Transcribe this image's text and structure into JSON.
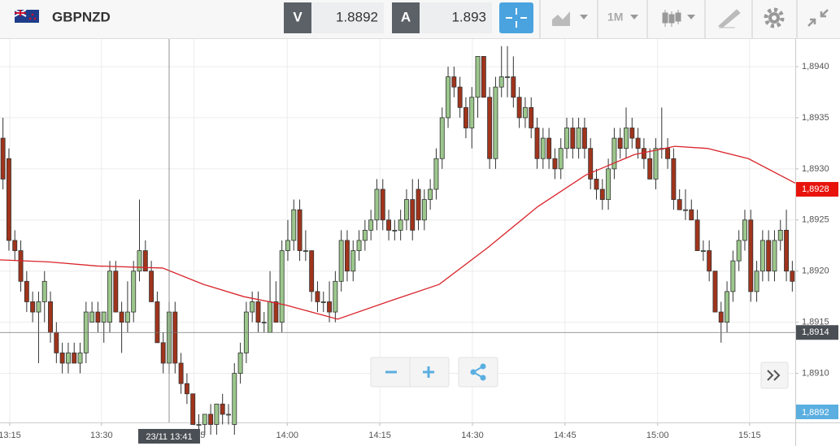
{
  "toolbar": {
    "symbol": "GBPNZD",
    "bid_label": "V",
    "bid": 1.8892,
    "ask_label": "A",
    "ask": 1.893,
    "timeframe": "1M"
  },
  "chart_data": {
    "type": "candlestick",
    "up_color": "#9cc78c",
    "down_color": "#a0341c",
    "grid": true,
    "xlim": [
      -0.5,
      133.5
    ],
    "ylim": [
      1.89052,
      1.89427
    ],
    "xticks": [
      {
        "value": 1.14,
        "label": "13:15"
      },
      {
        "value": 16.6,
        "label": "13:30"
      },
      {
        "value": 32.2,
        "label": "13:45"
      },
      {
        "value": 47.9,
        "label": "14:00"
      },
      {
        "value": 63.5,
        "label": "14:15"
      },
      {
        "value": 79.1,
        "label": "14:30"
      },
      {
        "value": 94.7,
        "label": "14:45"
      },
      {
        "value": 110.3,
        "label": "15:00"
      },
      {
        "value": 125.8,
        "label": "15:15"
      }
    ],
    "yticks": [
      {
        "value": 1.891,
        "label": "1,8910"
      },
      {
        "value": 1.8915,
        "label": "1,8915"
      },
      {
        "value": 1.892,
        "label": "1,8920"
      },
      {
        "value": 1.8925,
        "label": "1,8925"
      },
      {
        "value": 1.893,
        "label": "1,8930"
      },
      {
        "value": 1.8935,
        "label": "1,8935"
      },
      {
        "value": 1.894,
        "label": "1,8940"
      }
    ],
    "candles": [
      [
        1.8933,
        1.8935,
        1.8928,
        1.8929
      ],
      [
        1.8931,
        1.8932,
        1.8922,
        1.8923
      ],
      [
        1.8923,
        1.8924,
        1.8921,
        1.8922
      ],
      [
        1.8922,
        1.8923,
        1.8918,
        1.8919
      ],
      [
        1.8919,
        1.892,
        1.8916,
        1.8917
      ],
      [
        1.8917,
        1.8918,
        1.8915,
        1.8916
      ],
      [
        1.8916,
        1.8918,
        1.8911,
        1.8917
      ],
      [
        1.8917,
        1.892,
        1.8915,
        1.8919
      ],
      [
        1.8917,
        1.8918,
        1.8913,
        1.8914
      ],
      [
        1.8914,
        1.8915,
        1.8911,
        1.8912
      ],
      [
        1.8912,
        1.8913,
        1.891,
        1.8911
      ],
      [
        1.8911,
        1.8913,
        1.891,
        1.8912
      ],
      [
        1.8912,
        1.8913,
        1.8911,
        1.8911
      ],
      [
        1.8911,
        1.8913,
        1.891,
        1.8912
      ],
      [
        1.8912,
        1.8917,
        1.8911,
        1.8916
      ],
      [
        1.8915,
        1.8917,
        1.8915,
        1.8916
      ],
      [
        1.8916,
        1.8917,
        1.8914,
        1.8915
      ],
      [
        1.8915,
        1.8916,
        1.8913,
        1.8916
      ],
      [
        1.8915,
        1.8921,
        1.8914,
        1.892
      ],
      [
        1.892,
        1.8921,
        1.8916,
        1.8916
      ],
      [
        1.8916,
        1.8917,
        1.8912,
        1.8915
      ],
      [
        1.8915,
        1.8919,
        1.8914,
        1.8916
      ],
      [
        1.8916,
        1.8921,
        1.8915,
        1.892
      ],
      [
        1.892,
        1.8927,
        1.8919,
        1.8922
      ],
      [
        1.8922,
        1.8923,
        1.892,
        1.892
      ],
      [
        1.892,
        1.8921,
        1.8917,
        1.8917
      ],
      [
        1.8917,
        1.8918,
        1.8913,
        1.8913
      ],
      [
        1.8913,
        1.8914,
        1.891,
        1.8911
      ],
      [
        1.8911,
        1.8917,
        1.891,
        1.8916
      ],
      [
        1.8916,
        1.8917,
        1.891,
        1.8911
      ],
      [
        1.8911,
        1.8912,
        1.8908,
        1.8909
      ],
      [
        1.8909,
        1.891,
        1.8907,
        1.8908
      ],
      [
        1.8908,
        1.8908,
        1.8905,
        1.8905
      ],
      [
        1.8905,
        1.8906,
        1.8904,
        1.8905
      ],
      [
        1.8905,
        1.8906,
        1.8904,
        1.8906
      ],
      [
        1.8906,
        1.8907,
        1.8904,
        1.8905
      ],
      [
        1.8905,
        1.8907,
        1.8904,
        1.8907
      ],
      [
        1.8907,
        1.8908,
        1.8905,
        1.8906
      ],
      [
        1.8906,
        1.8907,
        1.8905,
        1.8906
      ],
      [
        1.8905,
        1.8911,
        1.8904,
        1.891
      ],
      [
        1.891,
        1.8913,
        1.8909,
        1.8912
      ],
      [
        1.8912,
        1.8917,
        1.8911,
        1.8916
      ],
      [
        1.8916,
        1.8918,
        1.8915,
        1.8917
      ],
      [
        1.8917,
        1.8918,
        1.8914,
        1.8915
      ],
      [
        1.8915,
        1.8916,
        1.8914,
        1.8915
      ],
      [
        1.8914,
        1.892,
        1.8914,
        1.8917
      ],
      [
        1.8917,
        1.8919,
        1.8915,
        1.8915
      ],
      [
        1.8915,
        1.8923,
        1.8914,
        1.8922
      ],
      [
        1.8922,
        1.8925,
        1.8921,
        1.8923
      ],
      [
        1.8923,
        1.8927,
        1.8922,
        1.8926
      ],
      [
        1.8926,
        1.8927,
        1.8921,
        1.8922
      ],
      [
        1.8922,
        1.8924,
        1.8921,
        1.8922
      ],
      [
        1.8922,
        1.8922,
        1.8917,
        1.8918
      ],
      [
        1.8918,
        1.8919,
        1.8916,
        1.8917
      ],
      [
        1.8917,
        1.8918,
        1.8916,
        1.8917
      ],
      [
        1.8917,
        1.8919,
        1.8915,
        1.8916
      ],
      [
        1.8916,
        1.892,
        1.8915,
        1.8919
      ],
      [
        1.8919,
        1.8924,
        1.8918,
        1.8923
      ],
      [
        1.8923,
        1.8924,
        1.8919,
        1.892
      ],
      [
        1.892,
        1.8923,
        1.8919,
        1.8922
      ],
      [
        1.8922,
        1.8924,
        1.8921,
        1.8923
      ],
      [
        1.8923,
        1.8925,
        1.8922,
        1.8924
      ],
      [
        1.8924,
        1.8926,
        1.8923,
        1.8925
      ],
      [
        1.8925,
        1.8929,
        1.8924,
        1.8928
      ],
      [
        1.8928,
        1.8929,
        1.8924,
        1.8925
      ],
      [
        1.8925,
        1.8926,
        1.8923,
        1.8924
      ],
      [
        1.8924,
        1.8925,
        1.8923,
        1.8924
      ],
      [
        1.8924,
        1.8926,
        1.8923,
        1.8925
      ],
      [
        1.8925,
        1.8928,
        1.8924,
        1.8927
      ],
      [
        1.8927,
        1.8929,
        1.8923,
        1.8924
      ],
      [
        1.8928,
        1.8929,
        1.8924,
        1.8925
      ],
      [
        1.8925,
        1.8928,
        1.8924,
        1.8927
      ],
      [
        1.8927,
        1.8929,
        1.8926,
        1.8928
      ],
      [
        1.8928,
        1.8932,
        1.8927,
        1.8931
      ],
      [
        1.8931,
        1.8936,
        1.893,
        1.8935
      ],
      [
        1.8935,
        1.894,
        1.8934,
        1.8939
      ],
      [
        1.8939,
        1.894,
        1.8937,
        1.8938
      ],
      [
        1.8938,
        1.8939,
        1.8935,
        1.8936
      ],
      [
        1.8936,
        1.8937,
        1.8933,
        1.8934
      ],
      [
        1.8934,
        1.8938,
        1.8932,
        1.8937
      ],
      [
        1.8937,
        1.8941,
        1.8935,
        1.8941
      ],
      [
        1.8941,
        1.8941,
        1.8937,
        1.8937
      ],
      [
        1.8937,
        1.8938,
        1.893,
        1.8931
      ],
      [
        1.8931,
        1.8939,
        1.893,
        1.8938
      ],
      [
        1.8938,
        1.8942,
        1.8937,
        1.8939
      ],
      [
        1.8939,
        1.8942,
        1.8937,
        1.8939
      ],
      [
        1.8939,
        1.8941,
        1.8936,
        1.8937
      ],
      [
        1.8937,
        1.8938,
        1.8934,
        1.8935
      ],
      [
        1.8935,
        1.8937,
        1.8934,
        1.8936
      ],
      [
        1.8936,
        1.8937,
        1.8933,
        1.8934
      ],
      [
        1.8934,
        1.8935,
        1.893,
        1.8931
      ],
      [
        1.8931,
        1.8934,
        1.893,
        1.8933
      ],
      [
        1.8933,
        1.8934,
        1.893,
        1.8931
      ],
      [
        1.8931,
        1.8932,
        1.8929,
        1.893
      ],
      [
        1.893,
        1.8933,
        1.8929,
        1.8932
      ],
      [
        1.8932,
        1.8935,
        1.8931,
        1.8934
      ],
      [
        1.8934,
        1.8935,
        1.8931,
        1.8932
      ],
      [
        1.8932,
        1.8935,
        1.8931,
        1.8934
      ],
      [
        1.8934,
        1.8935,
        1.8931,
        1.8932
      ],
      [
        1.8932,
        1.8933,
        1.8928,
        1.8929
      ],
      [
        1.8929,
        1.893,
        1.8927,
        1.8928
      ],
      [
        1.8928,
        1.8929,
        1.8926,
        1.8927
      ],
      [
        1.8927,
        1.8931,
        1.8926,
        1.893
      ],
      [
        1.893,
        1.8934,
        1.8929,
        1.8933
      ],
      [
        1.8933,
        1.8934,
        1.8931,
        1.8932
      ],
      [
        1.8932,
        1.8936,
        1.8931,
        1.8934
      ],
      [
        1.8934,
        1.8935,
        1.8932,
        1.8933
      ],
      [
        1.8933,
        1.8934,
        1.8931,
        1.8932
      ],
      [
        1.8932,
        1.8933,
        1.893,
        1.8931
      ],
      [
        1.8931,
        1.8932,
        1.8929,
        1.8929
      ],
      [
        1.8929,
        1.8933,
        1.8928,
        1.8932
      ],
      [
        1.8932,
        1.8936,
        1.8931,
        1.8932
      ],
      [
        1.8932,
        1.8933,
        1.893,
        1.8931
      ],
      [
        1.8931,
        1.8932,
        1.8926,
        1.8927
      ],
      [
        1.8927,
        1.8928,
        1.8926,
        1.8926
      ],
      [
        1.8926,
        1.8928,
        1.8925,
        1.8926
      ],
      [
        1.8926,
        1.8927,
        1.8925,
        1.8925
      ],
      [
        1.8925,
        1.8926,
        1.8922,
        1.8922
      ],
      [
        1.8922,
        1.8923,
        1.8921,
        1.8922
      ],
      [
        1.8922,
        1.8923,
        1.8919,
        1.892
      ],
      [
        1.892,
        1.892,
        1.8916,
        1.8916
      ],
      [
        1.8916,
        1.8917,
        1.8913,
        1.8915
      ],
      [
        1.8915,
        1.8919,
        1.8914,
        1.8918
      ],
      [
        1.8918,
        1.8922,
        1.8917,
        1.8921
      ],
      [
        1.8921,
        1.8924,
        1.892,
        1.8923
      ],
      [
        1.8923,
        1.8926,
        1.8922,
        1.8925
      ],
      [
        1.8925,
        1.8926,
        1.8917,
        1.8918
      ],
      [
        1.8918,
        1.8921,
        1.8917,
        1.892
      ],
      [
        1.892,
        1.8924,
        1.8919,
        1.8923
      ],
      [
        1.8923,
        1.8924,
        1.8919,
        1.892
      ],
      [
        1.892,
        1.8924,
        1.8919,
        1.8923
      ],
      [
        1.8923,
        1.8925,
        1.8922,
        1.8924
      ],
      [
        1.8924,
        1.8926,
        1.8919,
        1.892
      ],
      [
        1.892,
        1.8921,
        1.8918,
        1.8919
      ]
    ],
    "ma": {
      "color": "#d9242a",
      "x": [
        -0.5,
        7.7,
        15.9,
        26.9,
        33.8,
        40.6,
        47.5,
        56.4,
        65.3,
        73.5,
        81.7,
        90.1,
        98.2,
        106.4,
        113.2,
        118.7,
        125.6,
        133.5
      ],
      "values": [
        1.89211,
        1.89209,
        1.89205,
        1.89203,
        1.89187,
        1.89175,
        1.89167,
        1.89153,
        1.89171,
        1.89187,
        1.89223,
        1.89263,
        1.89294,
        1.89314,
        1.89322,
        1.8932,
        1.8931,
        1.89286
      ]
    },
    "price_tags": [
      {
        "value": 1.8928,
        "label": "1,8928",
        "color": "#e8140c"
      }
    ],
    "bid_tag": {
      "value": 1.8892,
      "label": "1,8892",
      "color": "#5aaee0"
    },
    "crosshair": {
      "x": 28,
      "x_label": "23/11 13:41",
      "y": {
        "value": 1.8914,
        "label": "1,8914"
      },
      "color": "#4a4f55"
    }
  }
}
